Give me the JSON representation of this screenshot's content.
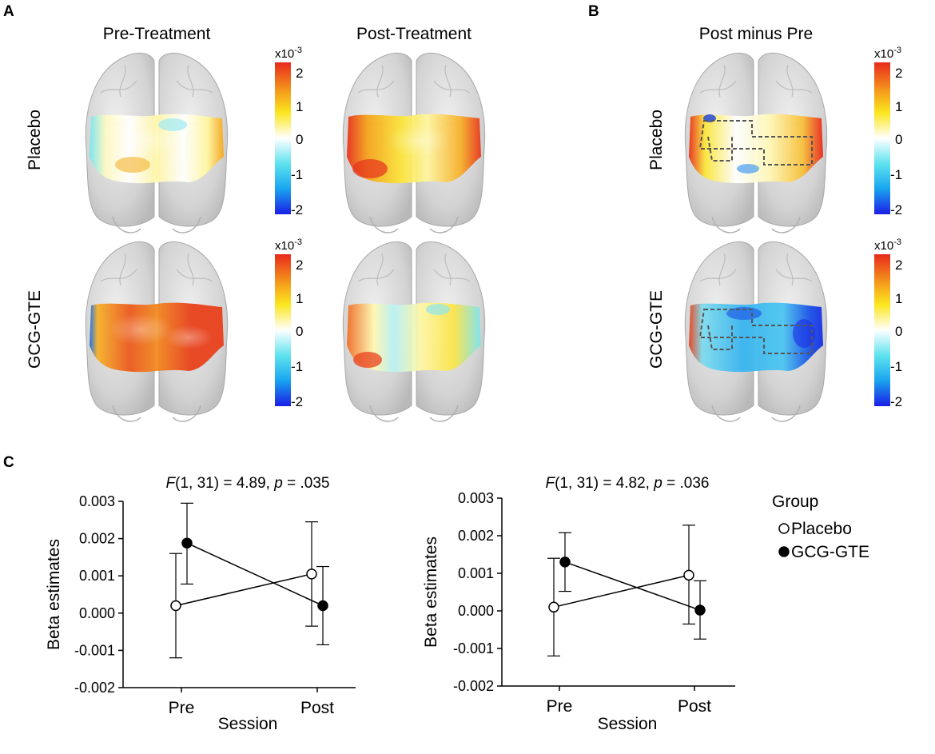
{
  "panels": {
    "A": {
      "letter": "A",
      "col_titles": [
        "Pre-Treatment",
        "Post-Treatment"
      ],
      "row_labels": [
        "Placebo",
        "GCG-GTE"
      ],
      "maps": [
        {
          "row": "Placebo",
          "col": "Pre-Treatment",
          "pattern": "mostly near zero (pale yellow/white), light cyan at lateral edges, orange at bottom"
        },
        {
          "row": "Placebo",
          "col": "Post-Treatment",
          "pattern": "positive yellow-orange, red at lateral edges"
        },
        {
          "row": "GCG-GTE",
          "col": "Pre-Treatment",
          "pattern": "strong positive, orange-red across frontal region"
        },
        {
          "row": "GCG-GTE",
          "col": "Post-Treatment",
          "pattern": "mostly pale yellow, some light cyan and orange patches"
        }
      ]
    },
    "B": {
      "letter": "B",
      "title": "Post minus Pre",
      "row_labels": [
        "Placebo",
        "GCG-GTE"
      ],
      "maps": [
        {
          "row": "Placebo",
          "pattern": "mixed yellow/white with red at lateral edges, dashed ROI outlines"
        },
        {
          "row": "GCG-GTE",
          "pattern": "negative, cyan-blue across frontal region, dashed ROI outlines"
        }
      ]
    },
    "C": {
      "letter": "C"
    }
  },
  "colorbar": {
    "exponent_label": "x10",
    "exponent_power": "-3",
    "ticks": [
      "2",
      "1",
      "0",
      "-1",
      "-2"
    ],
    "colors": [
      "#e8291c",
      "#f5a21c",
      "#fbe61e",
      "#ffffff",
      "#5ce2ee",
      "#1aa6f0",
      "#1a1ee6"
    ]
  },
  "legend": {
    "title": "Group",
    "items": [
      {
        "label": "Placebo",
        "marker": "open-circle"
      },
      {
        "label": "GCG-GTE",
        "marker": "filled-circle"
      }
    ]
  },
  "chart_data": [
    {
      "type": "line",
      "stat_pre": "F",
      "stat_mid": "(1, 31) = 4.89, ",
      "stat_p": "p",
      "stat_post": " = .035",
      "xlabel": "Session",
      "ylabel": "Beta estimates",
      "categories": [
        "Pre",
        "Post"
      ],
      "ylim": [
        -0.002,
        0.003
      ],
      "yticks": [
        "0.003",
        "0.002",
        "0.001",
        "0.000",
        "-0.001",
        "-0.002"
      ],
      "series": [
        {
          "name": "Placebo",
          "marker": "open",
          "values": [
            0.0002,
            0.00105
          ],
          "err_lo": [
            -0.0012,
            -0.00035
          ],
          "err_hi": [
            0.0016,
            0.00245
          ]
        },
        {
          "name": "GCG-GTE",
          "marker": "filled",
          "values": [
            0.00188,
            0.0002
          ],
          "err_lo": [
            0.00078,
            -0.00085
          ],
          "err_hi": [
            0.00295,
            0.00125
          ]
        }
      ]
    },
    {
      "type": "line",
      "stat_pre": "F",
      "stat_mid": "(1, 31) = 4.82, ",
      "stat_p": "p",
      "stat_post": " = .036",
      "xlabel": "Session",
      "ylabel": "Beta estimates",
      "categories": [
        "Pre",
        "Post"
      ],
      "ylim": [
        -0.002,
        0.003
      ],
      "yticks": [
        "0.003",
        "0.002",
        "0.001",
        "0.000",
        "-0.001",
        "-0.002"
      ],
      "series": [
        {
          "name": "Placebo",
          "marker": "open",
          "values": [
            0.0001,
            0.00095
          ],
          "err_lo": [
            -0.0012,
            -0.00035
          ],
          "err_hi": [
            0.0014,
            0.00228
          ]
        },
        {
          "name": "GCG-GTE",
          "marker": "filled",
          "values": [
            0.0013,
            2e-05
          ],
          "err_lo": [
            0.00052,
            -0.00075
          ],
          "err_hi": [
            0.00208,
            0.0008
          ]
        }
      ]
    }
  ]
}
